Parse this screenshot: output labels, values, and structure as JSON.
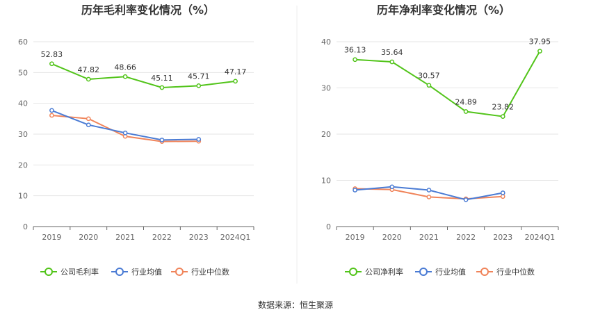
{
  "source_label": "数据来源：恒生聚源",
  "chart_data": [
    {
      "type": "line",
      "title": "历年毛利率变化情况（%）",
      "categories": [
        "2019",
        "2020",
        "2021",
        "2022",
        "2023",
        "2024Q1"
      ],
      "ylim": [
        0,
        60
      ],
      "yticks": [
        0,
        10,
        20,
        30,
        40,
        50,
        60
      ],
      "grid": true,
      "legend_position": "bottom",
      "series": [
        {
          "name": "公司毛利率",
          "color": "#52c41a",
          "values": [
            52.83,
            47.82,
            48.66,
            45.11,
            45.71,
            47.17
          ],
          "labels": [
            "52.83",
            "47.82",
            "48.66",
            "45.11",
            "45.71",
            "47.17"
          ]
        },
        {
          "name": "行业均值",
          "color": "#4a7bd4",
          "values": [
            37.7,
            33.0,
            30.4,
            28.1,
            28.3,
            null
          ]
        },
        {
          "name": "行业中位数",
          "color": "#f0845a",
          "values": [
            36.1,
            35.0,
            29.3,
            27.6,
            27.7,
            null
          ]
        }
      ]
    },
    {
      "type": "line",
      "title": "历年净利率变化情况（%）",
      "categories": [
        "2019",
        "2020",
        "2021",
        "2022",
        "2023",
        "2024Q1"
      ],
      "ylim": [
        0,
        40
      ],
      "yticks": [
        0,
        10,
        20,
        30,
        40
      ],
      "grid": true,
      "legend_position": "bottom",
      "series": [
        {
          "name": "公司净利率",
          "color": "#52c41a",
          "values": [
            36.13,
            35.64,
            30.57,
            24.89,
            23.82,
            37.95
          ],
          "labels": [
            "36.13",
            "35.64",
            "30.57",
            "24.89",
            "23.82",
            "37.95"
          ]
        },
        {
          "name": "行业均值",
          "color": "#4a7bd4",
          "values": [
            7.9,
            8.6,
            7.9,
            5.8,
            7.3,
            null
          ]
        },
        {
          "name": "行业中位数",
          "color": "#f0845a",
          "values": [
            8.2,
            8.0,
            6.4,
            6.0,
            6.5,
            null
          ]
        }
      ]
    }
  ]
}
